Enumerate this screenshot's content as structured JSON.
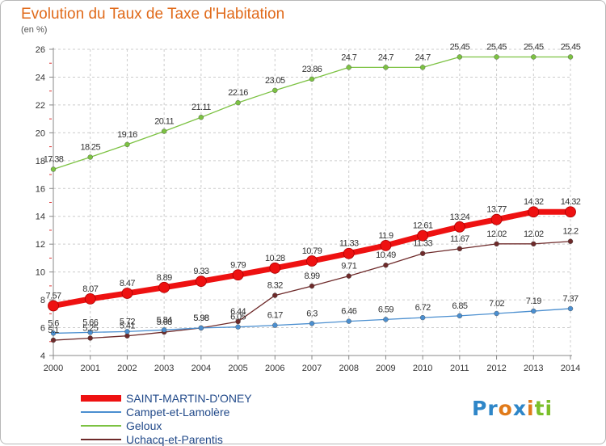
{
  "title": "Evolution du Taux de Taxe d'Habitation",
  "unit": "(en %)",
  "logo": {
    "parts": [
      "Pr",
      "o",
      "x",
      "i",
      "ti"
    ],
    "colors": [
      "#2e86c8",
      "#e07a1a",
      "#2e86c8",
      "#e07a1a",
      "#7bbf2a"
    ]
  },
  "chart_data": {
    "type": "line",
    "x": [
      "2000",
      "2001",
      "2002",
      "2003",
      "2004",
      "2005",
      "2006",
      "2007",
      "2008",
      "2009",
      "2010",
      "2011",
      "2012",
      "2013",
      "2014"
    ],
    "ylim": [
      4,
      26
    ],
    "yticks": [
      "4",
      "6",
      "8",
      "10",
      "12",
      "14",
      "16",
      "18",
      "20",
      "22",
      "24",
      "26"
    ],
    "grid": true,
    "legend_position": "bottom-left",
    "series": [
      {
        "name": "SAINT-MARTIN-D'ONEY",
        "color": "#ee1111",
        "emphasis": true,
        "values": [
          7.57,
          8.07,
          8.47,
          8.89,
          9.33,
          9.79,
          10.28,
          10.79,
          11.33,
          11.9,
          12.61,
          13.24,
          13.77,
          14.32,
          14.32
        ],
        "labels": [
          "7.57",
          "8.07",
          "8.47",
          "8.89",
          "9.33",
          "9.79",
          "10.28",
          "10.79",
          "11.33",
          "11.9",
          "12.61",
          "13.24",
          "13.77",
          "14.32",
          "14.32"
        ]
      },
      {
        "name": "Campet-et-Lamolère",
        "color": "#4b8fd0",
        "emphasis": false,
        "values": [
          5.6,
          5.66,
          5.72,
          5.84,
          5.98,
          6.05,
          6.17,
          6.3,
          6.46,
          6.59,
          6.72,
          6.85,
          7.02,
          7.19,
          7.37
        ],
        "labels": [
          "5.6",
          "5.66",
          "5.72",
          "5.84",
          "5.98",
          "6.05",
          "6.17",
          "6.3",
          "6.46",
          "6.59",
          "6.72",
          "6.85",
          "7.02",
          "7.19",
          "7.37"
        ]
      },
      {
        "name": "Geloux",
        "color": "#7cc242",
        "emphasis": false,
        "values": [
          17.38,
          18.25,
          19.16,
          20.11,
          21.11,
          22.16,
          23.05,
          23.86,
          24.7,
          24.7,
          24.7,
          25.45,
          25.45,
          25.45,
          25.45
        ],
        "labels": [
          "17.38",
          "18.25",
          "19.16",
          "20.11",
          "21.11",
          "22.16",
          "23.05",
          "23.86",
          "24.7",
          "24.7",
          "24.7",
          "25.45",
          "25.45",
          "25.45",
          "25.45"
        ]
      },
      {
        "name": "Uchacq-et-Parentis",
        "color": "#6e2a2a",
        "emphasis": false,
        "values": [
          5.1,
          5.25,
          5.41,
          5.68,
          5.98,
          6.44,
          8.32,
          8.99,
          9.71,
          10.49,
          11.33,
          11.67,
          12.02,
          12.02,
          12.2
        ],
        "labels": [
          "5.1",
          "5.25",
          "5.41",
          "5.68",
          "5.98",
          "6.44",
          "8.32",
          "8.99",
          "9.71",
          "10.49",
          "11.33",
          "11.67",
          "12.02",
          "12.02",
          "12.2"
        ]
      }
    ]
  }
}
